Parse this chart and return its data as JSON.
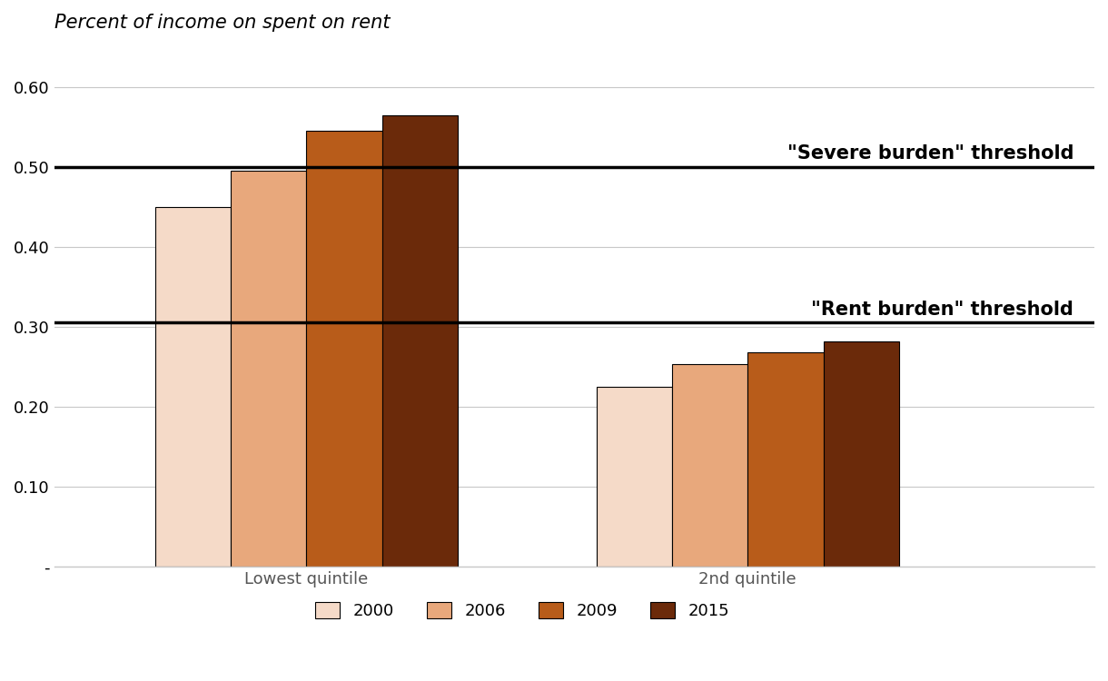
{
  "title": "Percent of income on spent on rent",
  "groups": [
    "Lowest quintile",
    "2nd quintile"
  ],
  "years": [
    "2000",
    "2006",
    "2009",
    "2015"
  ],
  "values": {
    "Lowest quintile": [
      0.45,
      0.495,
      0.545,
      0.565
    ],
    "2nd quintile": [
      0.225,
      0.253,
      0.268,
      0.282
    ]
  },
  "bar_colors": [
    "#f5dac8",
    "#e8a87c",
    "#b85c1a",
    "#6b2a0a"
  ],
  "severe_threshold": 0.5,
  "rent_threshold": 0.305,
  "severe_label": "\"Severe burden\" threshold",
  "rent_label": "\"Rent burden\" threshold",
  "ylim": [
    0,
    0.65
  ],
  "yticks": [
    0.0,
    0.1,
    0.2,
    0.3,
    0.4,
    0.5,
    0.6
  ],
  "ytick_labels": [
    "-",
    "0.10",
    "0.20",
    "0.30",
    "0.40",
    "0.50",
    "0.60"
  ],
  "background_color": "#ffffff",
  "bar_width": 0.12,
  "title_fontsize": 15,
  "threshold_label_fontsize": 15
}
